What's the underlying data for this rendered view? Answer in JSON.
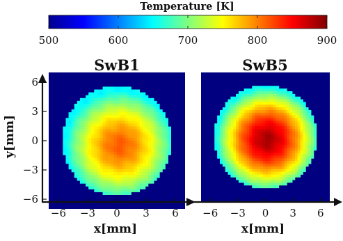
{
  "chart_data": {
    "type": "heatmap",
    "colorbar": {
      "title": "Temperature [K]",
      "range": [
        500,
        900
      ],
      "ticks": [
        500,
        600,
        700,
        800,
        900
      ],
      "colormap": "jet"
    },
    "xlabel": "x[mm]",
    "ylabel": "y[mm]",
    "xlim": [
      -7,
      7
    ],
    "ylim": [
      -7,
      7
    ],
    "xticks": [
      -6,
      -3,
      0,
      3,
      6
    ],
    "yticks": [
      6,
      3,
      0,
      -3,
      -6
    ],
    "background_value": 500,
    "panels": [
      {
        "title": "SwB1",
        "field": {
          "radius_mm": 5.6,
          "center_mm": [
            0.3,
            -0.5
          ],
          "peak_value": 815,
          "edge_value": 650,
          "shape": "bell-shaped, hot core slightly below and right of centre"
        }
      },
      {
        "title": "SwB5",
        "field": {
          "radius_mm": 5.6,
          "center_mm": [
            0.2,
            -0.3
          ],
          "peak_value": 885,
          "edge_value": 655,
          "shape": "bell-shaped, broader and hotter core than SwB1"
        }
      }
    ]
  }
}
